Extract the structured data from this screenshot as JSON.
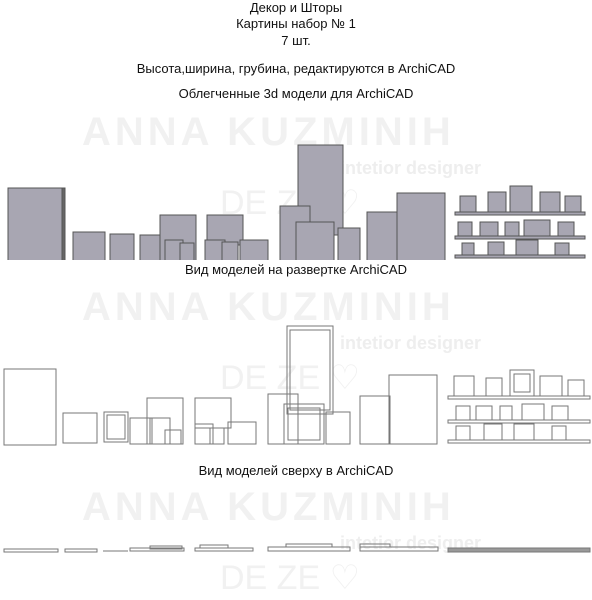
{
  "header": {
    "line1": "Декор и Шторы",
    "line2": "Картины набор № 1",
    "line3": "7 шт.",
    "line4": "Высота,ширина, грубина, редактируются в ArchiCAD",
    "line5": "Облегченные 3d модели для ArchiCAD"
  },
  "sections": {
    "elevation_caption": "Вид моделей на развертке ArchiCAD",
    "top_caption": "Вид моделей сверху в ArchiCAD"
  },
  "watermark": {
    "name": "ANNA KUZMINIH",
    "subtitle": "intetior designer",
    "mark": "DE ZE ♡"
  },
  "colors": {
    "frame_fill": "#a8a6b2",
    "frame_stroke": "#555555",
    "line": "#777777",
    "watermark": "#f1f1f1"
  }
}
